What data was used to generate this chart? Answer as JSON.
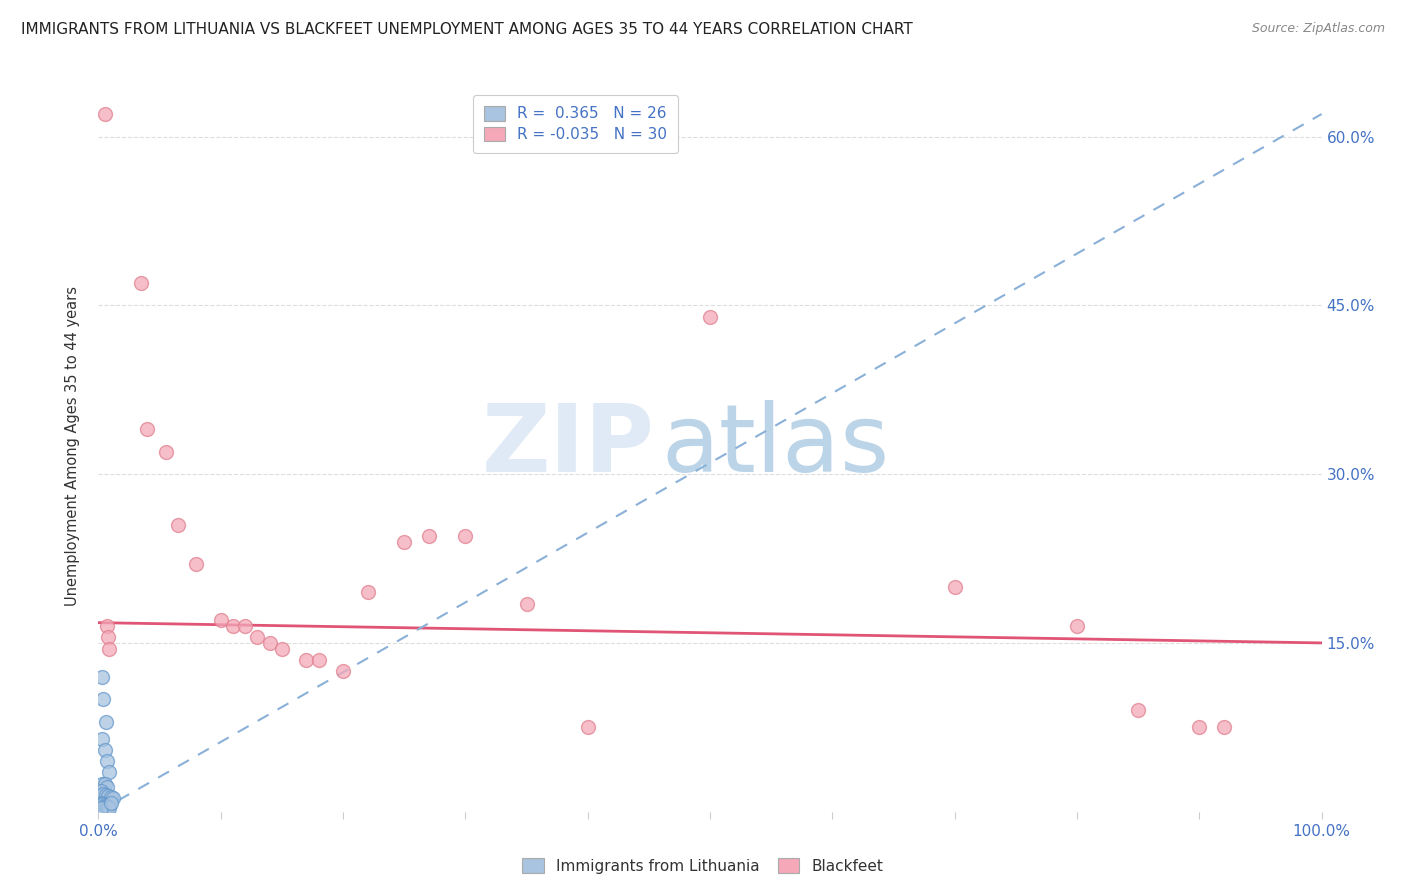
{
  "title": "IMMIGRANTS FROM LITHUANIA VS BLACKFEET UNEMPLOYMENT AMONG AGES 35 TO 44 YEARS CORRELATION CHART",
  "source": "Source: ZipAtlas.com",
  "ylabel": "Unemployment Among Ages 35 to 44 years",
  "xlim": [
    0.0,
    1.0
  ],
  "ylim": [
    0.0,
    0.65
  ],
  "x_ticks": [
    0.0,
    0.1,
    0.2,
    0.3,
    0.4,
    0.5,
    0.6,
    0.7,
    0.8,
    0.9,
    1.0
  ],
  "x_tick_labels": [
    "0.0%",
    "",
    "",
    "",
    "",
    "",
    "",
    "",
    "",
    "",
    "100.0%"
  ],
  "y_ticks": [
    0.0,
    0.15,
    0.3,
    0.45,
    0.6
  ],
  "y_tick_labels": [
    "",
    "15.0%",
    "30.0%",
    "45.0%",
    "60.0%"
  ],
  "background_color": "#ffffff",
  "watermark_zip": "ZIP",
  "watermark_atlas": "atlas",
  "legend_r_blue": "0.365",
  "legend_n_blue": "26",
  "legend_r_pink": "-0.035",
  "legend_n_pink": "30",
  "legend_label_blue": "Immigrants from Lithuania",
  "legend_label_pink": "Blackfeet",
  "blue_color": "#a8c4e0",
  "blue_edge_color": "#6699cc",
  "pink_color": "#f4a8b8",
  "pink_edge_color": "#e08090",
  "blue_scatter": [
    [
      0.003,
      0.12
    ],
    [
      0.004,
      0.1
    ],
    [
      0.006,
      0.08
    ],
    [
      0.003,
      0.065
    ],
    [
      0.005,
      0.055
    ],
    [
      0.007,
      0.045
    ],
    [
      0.009,
      0.035
    ],
    [
      0.003,
      0.025
    ],
    [
      0.005,
      0.025
    ],
    [
      0.007,
      0.022
    ],
    [
      0.002,
      0.018
    ],
    [
      0.004,
      0.016
    ],
    [
      0.006,
      0.015
    ],
    [
      0.008,
      0.014
    ],
    [
      0.01,
      0.013
    ],
    [
      0.012,
      0.012
    ],
    [
      0.002,
      0.008
    ],
    [
      0.003,
      0.007
    ],
    [
      0.004,
      0.007
    ],
    [
      0.005,
      0.006
    ],
    [
      0.006,
      0.005
    ],
    [
      0.007,
      0.005
    ],
    [
      0.008,
      0.004
    ],
    [
      0.009,
      0.003
    ],
    [
      0.002,
      0.003
    ],
    [
      0.01,
      0.008
    ]
  ],
  "pink_scatter": [
    [
      0.005,
      0.62
    ],
    [
      0.035,
      0.47
    ],
    [
      0.04,
      0.34
    ],
    [
      0.055,
      0.32
    ],
    [
      0.065,
      0.255
    ],
    [
      0.08,
      0.22
    ],
    [
      0.1,
      0.17
    ],
    [
      0.11,
      0.165
    ],
    [
      0.12,
      0.165
    ],
    [
      0.13,
      0.155
    ],
    [
      0.14,
      0.15
    ],
    [
      0.15,
      0.145
    ],
    [
      0.17,
      0.135
    ],
    [
      0.18,
      0.135
    ],
    [
      0.2,
      0.125
    ],
    [
      0.22,
      0.195
    ],
    [
      0.25,
      0.24
    ],
    [
      0.27,
      0.245
    ],
    [
      0.3,
      0.245
    ],
    [
      0.35,
      0.185
    ],
    [
      0.4,
      0.075
    ],
    [
      0.5,
      0.44
    ],
    [
      0.7,
      0.2
    ],
    [
      0.8,
      0.165
    ],
    [
      0.85,
      0.09
    ],
    [
      0.9,
      0.075
    ],
    [
      0.92,
      0.075
    ],
    [
      0.007,
      0.165
    ],
    [
      0.008,
      0.155
    ],
    [
      0.009,
      0.145
    ]
  ],
  "blue_trendline_x": [
    0.0,
    1.0
  ],
  "blue_trendline_y": [
    0.0,
    0.62
  ],
  "pink_trendline_x": [
    0.0,
    1.0
  ],
  "pink_trendline_y": [
    0.168,
    0.15
  ],
  "title_fontsize": 11,
  "axis_color_blue": "#4472c4",
  "dot_size": 100
}
